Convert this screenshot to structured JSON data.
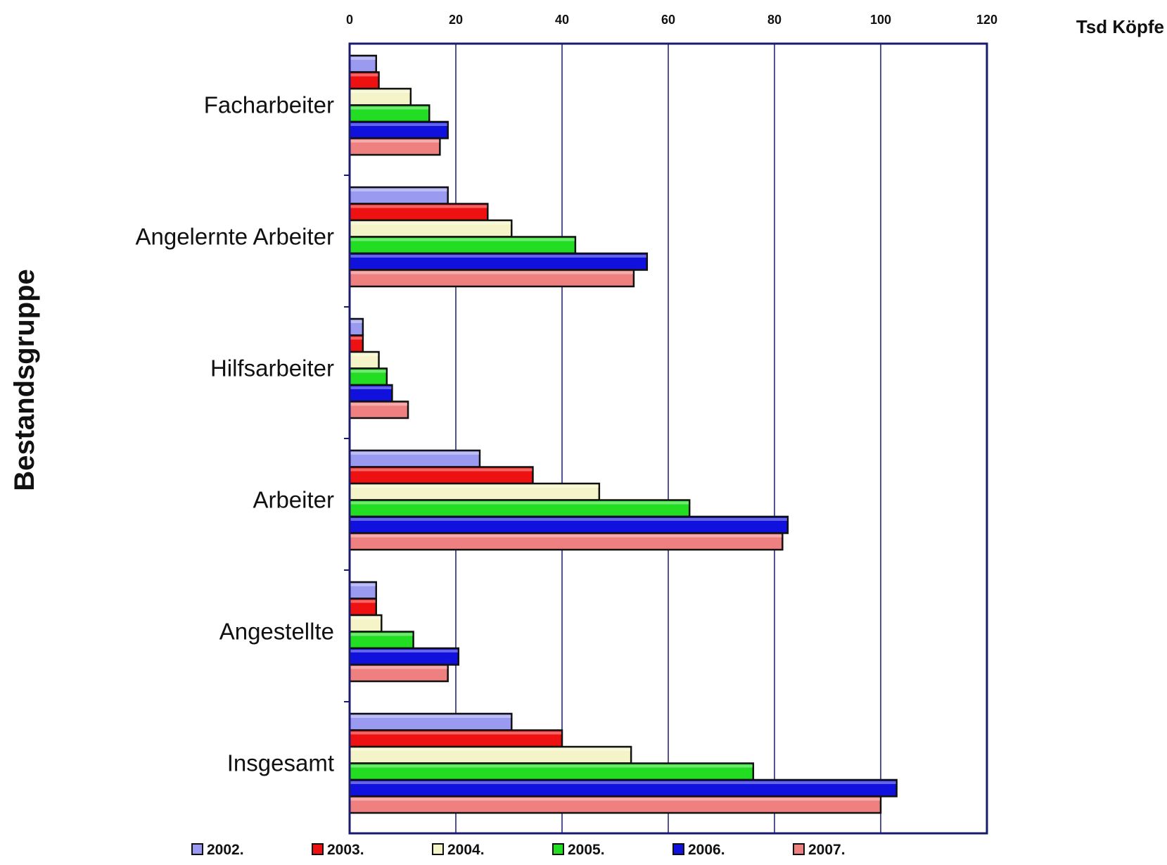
{
  "chart_data": {
    "type": "bar",
    "orientation": "horizontal",
    "xlabel": "Tsd Köpfe",
    "ylabel": "Bestandsgruppe",
    "xlim": [
      0,
      120
    ],
    "xticks": [
      0,
      20,
      40,
      60,
      80,
      100,
      120
    ],
    "grid": true,
    "legend_position": "bottom",
    "categories": [
      "Facharbeiter",
      "Angelernte Arbeiter",
      "Hilfsarbeiter",
      "Arbeiter",
      "Angestellte",
      "Insgesamt"
    ],
    "series": [
      {
        "name": "2002.",
        "color": "#9a9af0",
        "values": [
          5,
          18.5,
          2.5,
          24.5,
          5,
          30.5
        ]
      },
      {
        "name": "2003.",
        "color": "#ee1111",
        "values": [
          5.5,
          26,
          2.5,
          34.5,
          5,
          40
        ]
      },
      {
        "name": "2004.",
        "color": "#f4f4c8",
        "values": [
          11.5,
          30.5,
          5.5,
          47,
          6,
          53
        ]
      },
      {
        "name": "2005.",
        "color": "#22dd22",
        "values": [
          15,
          42.5,
          7,
          64,
          12,
          76
        ]
      },
      {
        "name": "2006.",
        "color": "#1111dd",
        "values": [
          18.5,
          56,
          8,
          82.5,
          20.5,
          103
        ]
      },
      {
        "name": "2007.",
        "color": "#ee8080",
        "values": [
          17,
          53.5,
          11,
          81.5,
          18.5,
          100
        ]
      }
    ]
  }
}
